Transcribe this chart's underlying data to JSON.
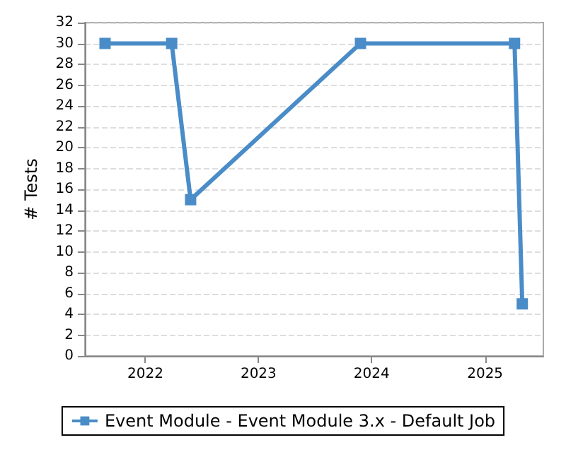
{
  "chart_data": {
    "type": "line",
    "ylabel": "# Tests",
    "x": [
      "2021-08-24",
      "2022-03-27",
      "2022-05-27",
      "2023-11-26",
      "2025-04-06",
      "2025-05-01"
    ],
    "series": [
      {
        "name": "Event Module - Event Module 3.x - Default Job",
        "color": "#4a8cc8",
        "values": [
          30,
          30,
          15,
          30,
          30,
          5
        ]
      }
    ],
    "xlim": [
      "2021-06-20",
      "2025-07-08"
    ],
    "xticks": [
      "2022",
      "2023",
      "2024",
      "2025"
    ],
    "ylim": [
      0,
      32
    ],
    "yticks": [
      0,
      2,
      4,
      6,
      8,
      10,
      12,
      14,
      16,
      18,
      20,
      22,
      24,
      26,
      28,
      30,
      32
    ],
    "grid": "y",
    "legend": "bottom",
    "marker": "square",
    "line_style": "solid"
  }
}
